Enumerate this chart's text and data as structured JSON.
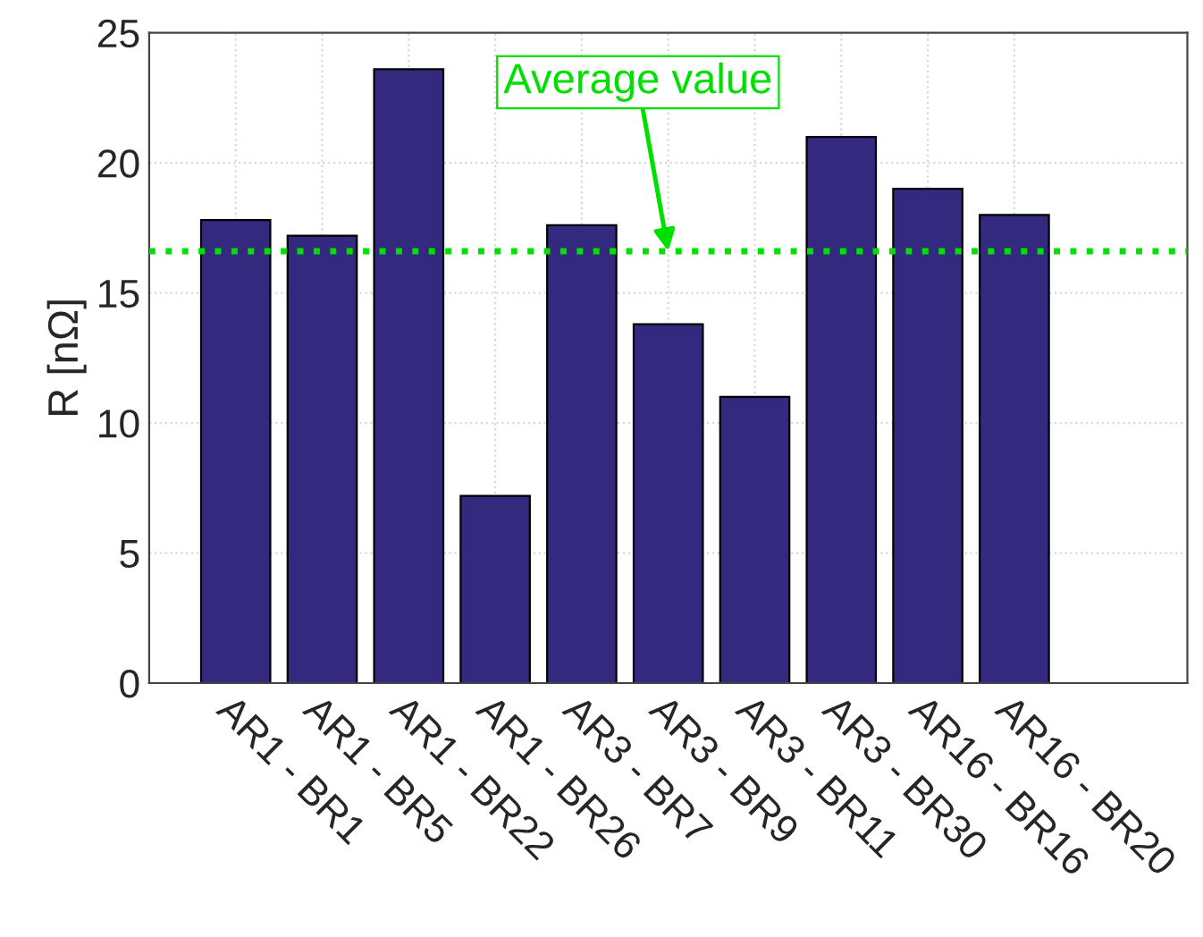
{
  "chart_data": {
    "type": "bar",
    "ylabel": "R [nΩ]",
    "categories": [
      "AR1 - BR1",
      "AR1 - BR5",
      "AR1 - BR22",
      "AR1 - BR26",
      "AR3 - BR7",
      "AR3 - BR9",
      "AR3 - BR11",
      "AR3 - BR30",
      "AR16 - BR16",
      "AR16 - BR20"
    ],
    "values": [
      17.8,
      17.2,
      23.6,
      7.2,
      17.6,
      13.8,
      11.0,
      21.0,
      19.0,
      18.0
    ],
    "color": "#332a80",
    "ylim": [
      0,
      25
    ],
    "yticks": [
      0,
      5,
      10,
      15,
      20,
      25
    ],
    "grid": true,
    "ref_lines": [
      {
        "axis": "y",
        "value": 16.6,
        "color": "#00e000",
        "line_style": "dotted"
      }
    ],
    "annotations": [
      {
        "text": "Average value",
        "x": "AR3 - BR9",
        "y": 16.6
      }
    ]
  }
}
